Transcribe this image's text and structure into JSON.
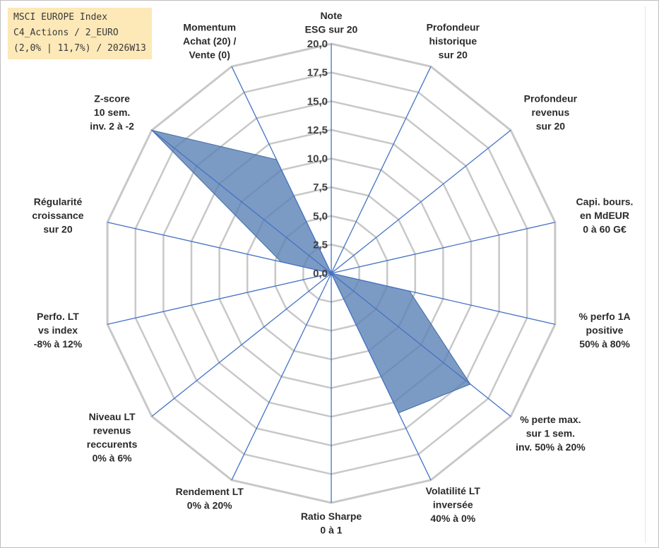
{
  "title": {
    "line1": "MSCI EUROPE Index",
    "line2": "C4_Actions / 2_EURO",
    "line3": "(2,0% | 11,7%) / 2026W13"
  },
  "chart_data": {
    "type": "radar",
    "rmin": 0,
    "rmax": 20,
    "tick_step": 2.5,
    "ticks": [
      "0,0",
      "2,5",
      "5,0",
      "7,5",
      "10,0",
      "12,5",
      "15,0",
      "17,5",
      "20,0"
    ],
    "axes": [
      {
        "lines": [
          "Note",
          "ESG sur 20"
        ]
      },
      {
        "lines": [
          "Profondeur",
          "historique",
          "sur 20"
        ]
      },
      {
        "lines": [
          "Profondeur",
          "revenus",
          "sur 20"
        ]
      },
      {
        "lines": [
          "Capi. bours.",
          "en MdEUR",
          "0 à 60 G€"
        ]
      },
      {
        "lines": [
          "% perfo 1A",
          "positive",
          "50% à 80%"
        ]
      },
      {
        "lines": [
          "% perte max.",
          "sur 1 sem.",
          "inv. 50% à 20%"
        ]
      },
      {
        "lines": [
          "Volatilité LT",
          "inversée",
          "40% à 0%"
        ]
      },
      {
        "lines": [
          "Ratio Sharpe",
          "0 à 1"
        ]
      },
      {
        "lines": [
          "Rendement LT",
          "0% à 20%"
        ]
      },
      {
        "lines": [
          "Niveau LT",
          "revenus",
          "reccurents",
          "0% à 6%"
        ]
      },
      {
        "lines": [
          "Perfo. LT",
          "vs index",
          "-8% à 12%"
        ]
      },
      {
        "lines": [
          "Régularité",
          "croissance",
          "sur 20"
        ]
      },
      {
        "lines": [
          "Z-score",
          "10 sem.",
          "inv. 2 à -2"
        ]
      },
      {
        "lines": [
          "Momentum",
          "Achat (20) /",
          "Vente (0)"
        ]
      }
    ],
    "series": [
      {
        "values": [
          0,
          0,
          0,
          0,
          7,
          15.5,
          13.5,
          0,
          0,
          0,
          0,
          4.5,
          20,
          11
        ]
      }
    ],
    "colors": {
      "fill": "#5b82b5",
      "fill_opacity": 0.8,
      "stroke": "#3f6aa6",
      "spoke": "#4472c4",
      "grid": "#c8c8c8"
    },
    "grid": true
  }
}
